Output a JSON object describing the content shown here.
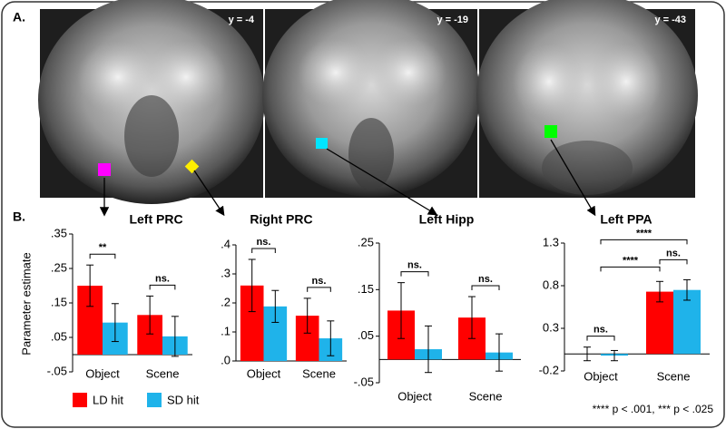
{
  "panel_a": {
    "label": "A.",
    "slices": [
      "y = -4",
      "y = -19",
      "y = -43"
    ]
  },
  "panel_b": {
    "label": "B.",
    "footnote": "**** p < .001, *** p < .025"
  },
  "chart_data": [
    {
      "type": "bar",
      "title": "Left PRC",
      "ylabel": "Parameter estimate",
      "categories": [
        "Object",
        "Scene"
      ],
      "series": [
        {
          "name": "LD hit",
          "color": "#ff0000",
          "values": [
            0.2,
            0.115
          ],
          "errors": [
            0.06,
            0.055
          ]
        },
        {
          "name": "SD hit",
          "color": "#1fb3ea",
          "values": [
            0.093,
            0.053
          ],
          "errors": [
            0.055,
            0.058
          ]
        }
      ],
      "ylim": [
        -0.05,
        0.35
      ],
      "yticks": [
        {
          "value": -0.05,
          "label": "-.05"
        },
        {
          "value": 0.05,
          "label": ".05"
        },
        {
          "value": 0.15,
          "label": ".15"
        },
        {
          "value": 0.25,
          "label": ".25"
        },
        {
          "value": 0.35,
          "label": ".35"
        }
      ],
      "annotations": [
        "**",
        "ns."
      ]
    },
    {
      "type": "bar",
      "title": "Right PRC",
      "categories": [
        "Object",
        "Scene"
      ],
      "series": [
        {
          "name": "LD hit",
          "color": "#ff0000",
          "values": [
            0.26,
            0.156
          ],
          "errors": [
            0.09,
            0.06
          ]
        },
        {
          "name": "SD hit",
          "color": "#1fb3ea",
          "values": [
            0.188,
            0.078
          ],
          "errors": [
            0.055,
            0.06
          ]
        }
      ],
      "ylim": [
        0,
        0.4
      ],
      "yticks": [
        {
          "value": 0,
          "label": ".0"
        },
        {
          "value": 0.1,
          "label": ".1"
        },
        {
          "value": 0.2,
          "label": ".2"
        },
        {
          "value": 0.3,
          "label": ".3"
        },
        {
          "value": 0.4,
          "label": ".4"
        }
      ],
      "annotations": [
        "ns.",
        "ns."
      ]
    },
    {
      "type": "bar",
      "title": "Left Hipp",
      "categories": [
        "Object",
        "Scene"
      ],
      "series": [
        {
          "name": "LD hit",
          "color": "#ff0000",
          "values": [
            0.105,
            0.09
          ],
          "errors": [
            0.06,
            0.045
          ]
        },
        {
          "name": "SD hit",
          "color": "#1fb3ea",
          "values": [
            0.022,
            0.015
          ],
          "errors": [
            0.05,
            0.04
          ]
        }
      ],
      "ylim": [
        -0.05,
        0.25
      ],
      "yticks": [
        {
          "value": -0.05,
          "label": "-.05"
        },
        {
          "value": 0.05,
          "label": ".05"
        },
        {
          "value": 0.15,
          "label": ".15"
        },
        {
          "value": 0.25,
          "label": ".25"
        }
      ],
      "annotations": [
        "ns.",
        "ns."
      ]
    },
    {
      "type": "bar",
      "title": "Left PPA",
      "categories": [
        "Object",
        "Scene"
      ],
      "series": [
        {
          "name": "LD hit",
          "color": "#ff0000",
          "values": [
            0,
            0.73
          ],
          "errors": [
            0.08,
            0.12
          ]
        },
        {
          "name": "SD hit",
          "color": "#1fb3ea",
          "values": [
            -0.02,
            0.75
          ],
          "errors": [
            0.06,
            0.12
          ]
        }
      ],
      "ylim": [
        -0.2,
        1.3
      ],
      "yticks": [
        -0.2,
        0.3,
        0.8,
        1.3
      ],
      "annotations": [
        "ns.",
        "ns.",
        "****",
        "****"
      ]
    }
  ]
}
